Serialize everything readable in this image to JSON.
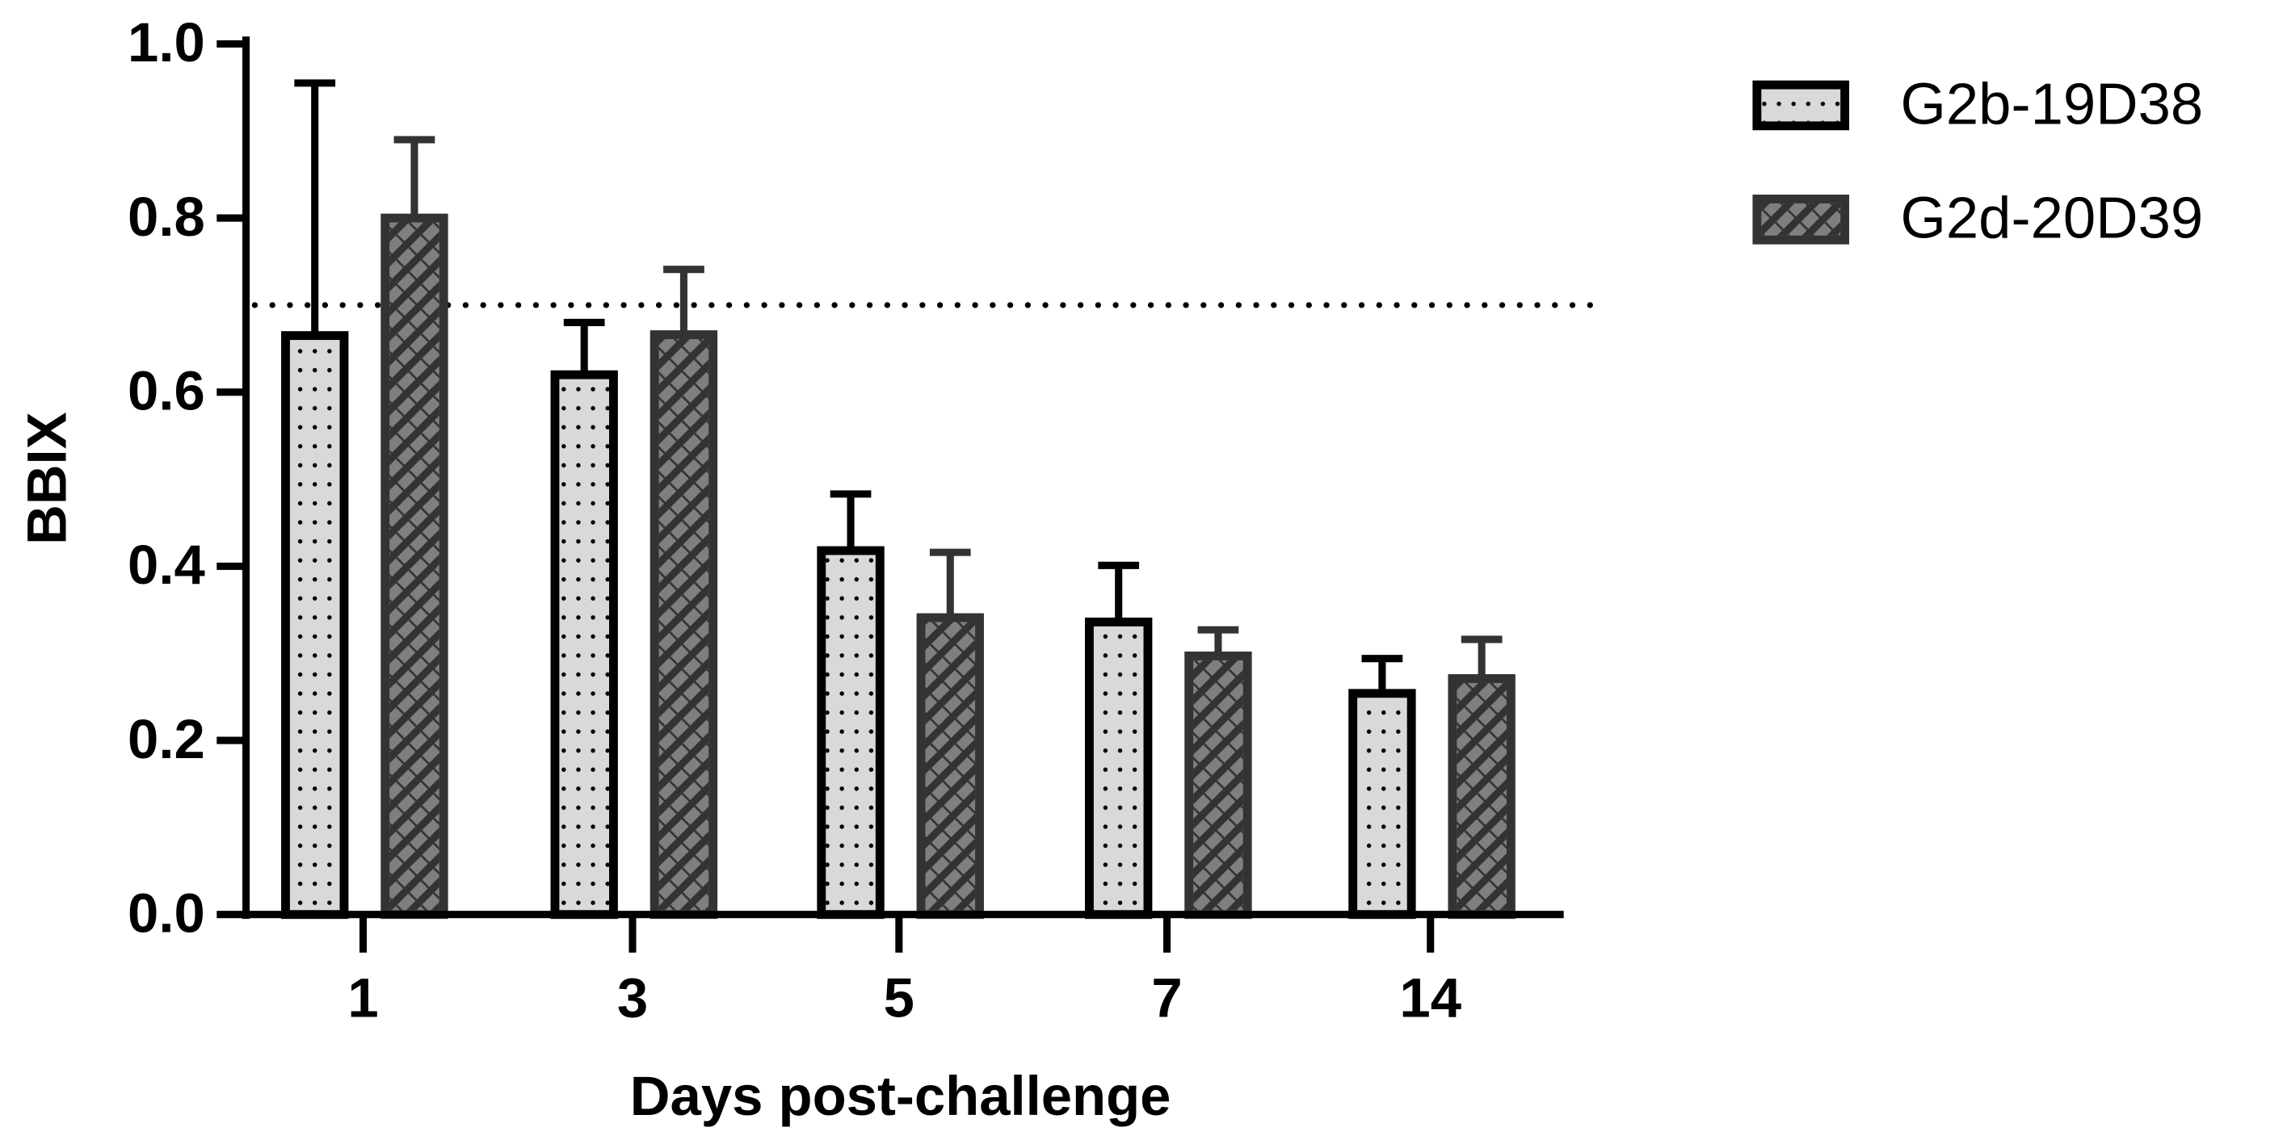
{
  "chart_data": {
    "type": "bar",
    "x_label": "Days post-challenge",
    "y_label": "BBIX",
    "categories": [
      "1",
      "3",
      "5",
      "7",
      "14"
    ],
    "series": [
      {
        "name": "G2b-19D38",
        "color": "#d9d9d9",
        "pattern": "dots",
        "edge": "#000000",
        "values": [
          0.665,
          0.62,
          0.418,
          0.336,
          0.254
        ],
        "errors": [
          0.29,
          0.06,
          0.065,
          0.065,
          0.04
        ]
      },
      {
        "name": "G2d-20D39",
        "color": "#7f7f7f",
        "pattern": "hatch",
        "edge": "#333333",
        "values": [
          0.8,
          0.666,
          0.341,
          0.297,
          0.271
        ],
        "errors": [
          0.09,
          0.075,
          0.075,
          0.03,
          0.045
        ]
      }
    ],
    "threshold": 0.7,
    "ylim": [
      0,
      1
    ],
    "yticks": [
      {
        "value": 0,
        "label": "0.0"
      },
      0.2,
      0.4,
      0.6,
      0.8,
      {
        "value": 1,
        "label": "1.0"
      }
    ],
    "legend": "top-right"
  }
}
